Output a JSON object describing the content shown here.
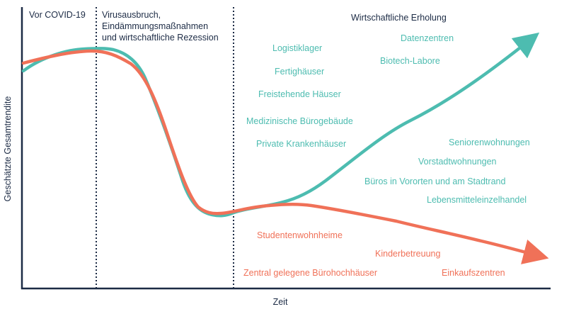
{
  "phases": {
    "pre_covid": "Vor COVID-19",
    "outbreak_line1": "Virusausbruch,",
    "outbreak_line2": "Eindämmungsmaßnahmen",
    "outbreak_line3": "und wirtschaftliche Rezession",
    "recovery": "Wirtschaftliche Erholung"
  },
  "axes": {
    "x_label": "Zeit",
    "y_label": "Geschätzte Gesamtrendite"
  },
  "teal_labels": [
    "Logistiklager",
    "Datenzentren",
    "Fertighäuser",
    "Biotech-Labore",
    "Freistehende Häuser",
    "Medizinische Bürogebäude",
    "Private Krankenhäuser",
    "Seniorenwohnungen",
    "Vorstadtwohnungen",
    "Büros in Vororten und am Stadtrand",
    "Lebensmitteleinzelhandel"
  ],
  "coral_labels": [
    "Studentenwohnheime",
    "Kinderbetreuung",
    "Zentral gelegene Bürohochhäuser",
    "Einkaufszentren"
  ],
  "colors": {
    "teal": "#4dbcb0",
    "coral": "#f07158",
    "axis": "#1c2b45"
  }
}
